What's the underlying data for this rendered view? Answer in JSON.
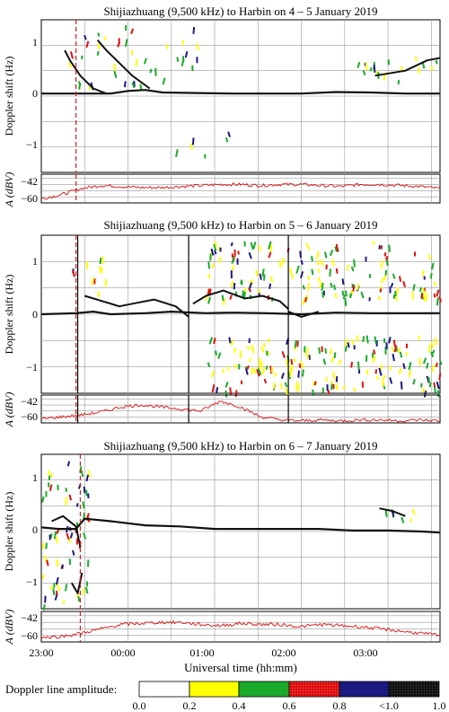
{
  "panels": [
    {
      "title": "Shijiazhuang (9,500 kHz) to Harbin on 4 – 5 January 2019",
      "ylabel": "Doppler shift (Hz)",
      "yticks": [
        "1",
        "0",
        "−1"
      ],
      "amp_label": "A (dBV)",
      "amp_ticks": [
        "−42",
        "−60"
      ]
    },
    {
      "title": "Shijiazhuang (9,500 kHz) to Harbin on 5 – 6 January 2019",
      "ylabel": "Doppler shift (Hz)",
      "yticks": [
        "1",
        "0",
        "−1"
      ],
      "amp_label": "A (dBV)",
      "amp_ticks": [
        "−42",
        "−60"
      ]
    },
    {
      "title": "Shijiazhuang (9,500 kHz) to Harbin on 6 – 7 January 2019",
      "ylabel": "Doppler shift (Hz)",
      "yticks": [
        "1",
        "0",
        "−1"
      ],
      "amp_label": "A (dBV)",
      "amp_ticks": [
        "−42",
        "−60"
      ]
    }
  ],
  "xaxis": {
    "ticks": [
      "23:00",
      "00:00",
      "01:00",
      "02:00",
      "03:00"
    ],
    "label": "Universal time (hh:mm)"
  },
  "legend": {
    "label": "Doppler line amplitude:",
    "ticks": [
      "0.0",
      "0.2",
      "0.4",
      "0.6",
      "0.8",
      "<1.0",
      "1.0"
    ],
    "colors": [
      "#ffffff",
      "#ffff00",
      "#1aaa2a",
      "#e01010",
      "#1a1a80",
      "#111111"
    ]
  },
  "chart_data": [
    {
      "type": "line",
      "title": "Shijiazhuang (9,500 kHz) to Harbin on 4 – 5 January 2019",
      "x_unit": "hours since 23:00 UT",
      "ylabel": "Doppler shift (Hz)",
      "ylim": [
        -1.5,
        1.5
      ],
      "xlim": [
        0,
        4.6
      ],
      "event_lines": [
        {
          "x": 0.4,
          "style": "dashed",
          "color": "#d02020"
        }
      ],
      "series": [
        {
          "points": [
            [
              0,
              0.05
            ],
            [
              0.3,
              0.05
            ],
            [
              0.5,
              0.05
            ],
            [
              0.8,
              0.05
            ],
            [
              1.0,
              0.1
            ],
            [
              1.2,
              0.12
            ],
            [
              1.4,
              0.07
            ],
            [
              1.8,
              0.06
            ],
            [
              2.2,
              0.05
            ],
            [
              2.6,
              0.05
            ],
            [
              3.0,
              0.05
            ],
            [
              3.4,
              0.08
            ],
            [
              3.8,
              0.07
            ],
            [
              4.2,
              0.05
            ],
            [
              4.6,
              0.05
            ]
          ]
        },
        {
          "points": [
            [
              0.27,
              0.9
            ],
            [
              0.33,
              0.7
            ],
            [
              0.45,
              0.4
            ],
            [
              0.6,
              0.15
            ],
            [
              0.75,
              0.05
            ]
          ]
        },
        {
          "points": [
            [
              0.65,
              1.1
            ],
            [
              0.75,
              0.9
            ],
            [
              0.9,
              0.65
            ],
            [
              1.05,
              0.4
            ],
            [
              1.25,
              0.15
            ]
          ]
        },
        {
          "points": [
            [
              3.85,
              0.4
            ],
            [
              4.2,
              0.5
            ],
            [
              4.45,
              0.7
            ],
            [
              4.6,
              0.75
            ]
          ]
        }
      ],
      "amplitude": {
        "ylabel": "A (dBV)",
        "ylim": [
          -66,
          -38
        ],
        "values": [
          -62,
          -58,
          -52,
          -49,
          -50,
          -51,
          -51,
          -50,
          -49,
          -48,
          -48,
          -49,
          -48,
          -48,
          -49,
          -50,
          -48,
          -48,
          -49,
          -50,
          -52
        ]
      }
    },
    {
      "type": "line",
      "title": "Shijiazhuang (9,500 kHz) to Harbin on 5 – 6 January 2019",
      "x_unit": "hours since 23:00 UT",
      "ylabel": "Doppler shift (Hz)",
      "ylim": [
        -1.5,
        1.5
      ],
      "xlim": [
        0,
        4.6
      ],
      "event_lines": [
        {
          "x": 0.4,
          "style": "dashed",
          "color": "#d02020"
        },
        {
          "x": 0.42,
          "style": "solid",
          "color": "#000000"
        },
        {
          "x": 1.7,
          "style": "solid",
          "color": "#000000"
        },
        {
          "x": 2.85,
          "style": "solid",
          "color": "#000000"
        }
      ],
      "series": [
        {
          "points": [
            [
              0,
              0.0
            ],
            [
              0.4,
              0.02
            ],
            [
              0.6,
              0.05
            ],
            [
              0.8,
              0.0
            ],
            [
              1.2,
              0.02
            ],
            [
              1.5,
              0.05
            ],
            [
              1.9,
              0.02
            ],
            [
              2.2,
              0.03
            ],
            [
              2.6,
              0.02
            ],
            [
              3.0,
              0.0
            ],
            [
              3.4,
              0.03
            ],
            [
              3.8,
              0.02
            ],
            [
              4.2,
              0.02
            ],
            [
              4.6,
              0.02
            ]
          ]
        },
        {
          "points": [
            [
              0.5,
              0.35
            ],
            [
              0.7,
              0.25
            ],
            [
              0.9,
              0.15
            ],
            [
              1.05,
              0.2
            ],
            [
              1.3,
              0.28
            ],
            [
              1.55,
              0.15
            ],
            [
              1.7,
              -0.05
            ]
          ]
        },
        {
          "points": [
            [
              1.75,
              0.2
            ],
            [
              1.9,
              0.35
            ],
            [
              2.1,
              0.45
            ],
            [
              2.35,
              0.3
            ],
            [
              2.55,
              0.35
            ],
            [
              2.75,
              0.25
            ],
            [
              2.85,
              0.1
            ]
          ]
        },
        {
          "points": [
            [
              2.85,
              0.05
            ],
            [
              3.0,
              -0.05
            ],
            [
              3.2,
              0.05
            ]
          ]
        }
      ],
      "amplitude": {
        "ylabel": "A (dBV)",
        "ylim": [
          -66,
          -38
        ],
        "values": [
          -62,
          -60,
          -58,
          -55,
          -50,
          -48,
          -50,
          -52,
          -54,
          -44,
          -50,
          -60,
          -63,
          -64,
          -63,
          -64,
          -63,
          -63,
          -64,
          -63,
          -64
        ]
      }
    },
    {
      "type": "line",
      "title": "Shijiazhuang (9,500 kHz) to Harbin on 6 – 7 January 2019",
      "x_unit": "hours since 23:00 UT",
      "ylabel": "Doppler shift (Hz)",
      "ylim": [
        -1.5,
        1.5
      ],
      "xlim": [
        0,
        4.6
      ],
      "event_lines": [
        {
          "x": 0.45,
          "style": "dashed",
          "color": "#d02020"
        }
      ],
      "series": [
        {
          "points": [
            [
              0,
              0.08
            ],
            [
              0.2,
              0.05
            ],
            [
              0.4,
              0.05
            ],
            [
              0.5,
              0.25
            ],
            [
              0.8,
              0.2
            ],
            [
              1.2,
              0.12
            ],
            [
              1.6,
              0.1
            ],
            [
              2.0,
              0.05
            ],
            [
              2.4,
              0.05
            ],
            [
              2.8,
              0.05
            ],
            [
              3.2,
              0.05
            ],
            [
              3.6,
              0.02
            ],
            [
              4.0,
              0.02
            ],
            [
              4.4,
              0.0
            ],
            [
              4.6,
              -0.02
            ]
          ]
        },
        {
          "points": [
            [
              0.12,
              0.2
            ],
            [
              0.25,
              0.3
            ],
            [
              0.4,
              0.1
            ],
            [
              0.45,
              -0.3
            ]
          ]
        },
        {
          "points": [
            [
              0.35,
              -1.0
            ],
            [
              0.42,
              -1.2
            ],
            [
              0.47,
              -0.8
            ]
          ]
        },
        {
          "points": [
            [
              3.9,
              0.45
            ],
            [
              4.05,
              0.4
            ],
            [
              4.2,
              0.3
            ]
          ]
        }
      ],
      "amplitude": {
        "ylabel": "A (dBV)",
        "ylim": [
          -66,
          -38
        ],
        "values": [
          -62,
          -61,
          -58,
          -54,
          -50,
          -49,
          -48,
          -48,
          -50,
          -51,
          -49,
          -50,
          -50,
          -52,
          -50,
          -51,
          -52,
          -54,
          -56,
          -58,
          -60
        ]
      }
    }
  ]
}
